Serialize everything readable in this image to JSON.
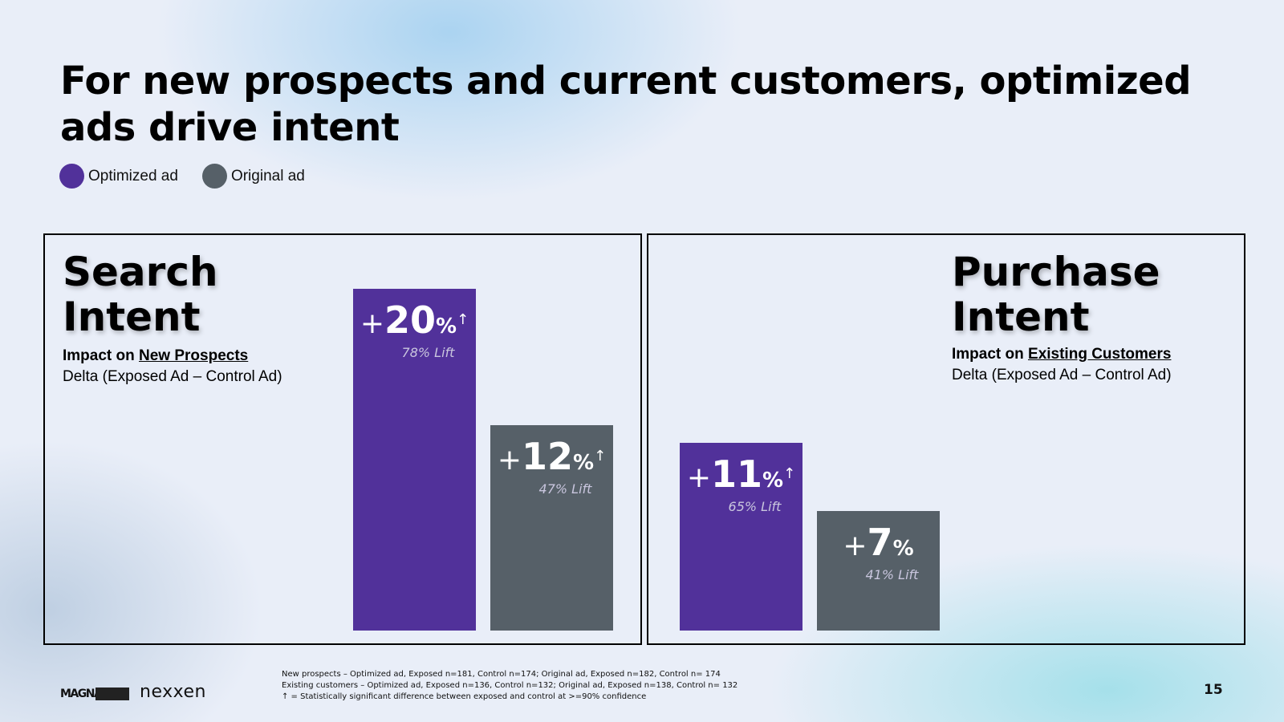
{
  "title": "For new prospects and current customers, optimized ads drive intent",
  "legend": [
    {
      "label": "Optimized ad",
      "color": "#51319a"
    },
    {
      "label": "Original ad",
      "color": "#566068"
    }
  ],
  "panels": [
    {
      "heading_line1": "Search",
      "heading_line2": "Intent",
      "impact_prefix": "Impact on ",
      "impact_target": "New Prospects",
      "delta": "Delta (Exposed Ad – Control Ad)"
    },
    {
      "heading_line1": "Purchase",
      "heading_line2": "Intent",
      "impact_prefix": "Impact on ",
      "impact_target": "Existing Customers",
      "delta": "Delta (Exposed Ad – Control Ad)"
    }
  ],
  "chart_data": [
    {
      "type": "bar",
      "title": "Search Intent",
      "categories": [
        "Optimized ad",
        "Original ad"
      ],
      "values": [
        20,
        12
      ],
      "value_labels": [
        "+20%↑",
        "+12%↑"
      ],
      "value_sign": "+",
      "value_unit": "%",
      "significant": [
        true,
        true
      ],
      "lift_labels": [
        "78% Lift",
        "47% Lift"
      ],
      "ylim": [
        0,
        27
      ],
      "grid": false
    },
    {
      "type": "bar",
      "title": "Purchase Intent",
      "categories": [
        "Optimized ad",
        "Original ad"
      ],
      "values": [
        11,
        7
      ],
      "value_labels": [
        "+11%↑",
        "+7%"
      ],
      "value_sign": "+",
      "value_unit": "%",
      "significant": [
        true,
        false
      ],
      "lift_labels": [
        "65% Lift",
        "41% Lift"
      ],
      "ylim": [
        0,
        27
      ],
      "grid": false
    }
  ],
  "footnotes": [
    "New prospects – Optimized ad, Exposed n=181, Control n=174; Original ad, Exposed n=182, Control n= 174",
    "Existing customers – Optimized ad, Exposed n=136, Control n=132; Original ad, Exposed n=138, Control n= 132",
    "↑ = Statistically significant difference between exposed and control at >=90% confidence"
  ],
  "logos": {
    "magna": "MAGNA",
    "nexxen": "nexxen"
  },
  "page_number": "15"
}
